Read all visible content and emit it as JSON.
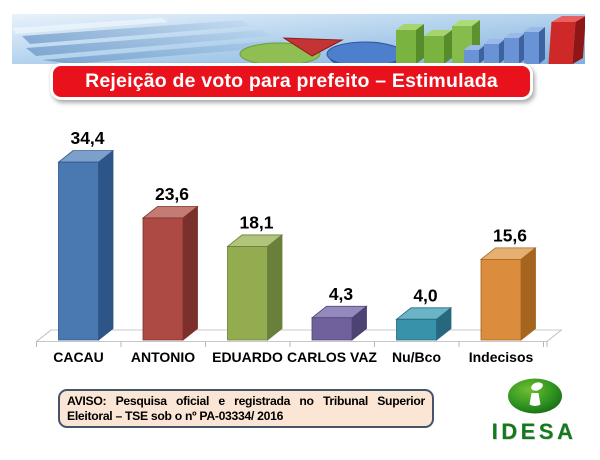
{
  "title": {
    "bg_color": "#E8111C"
  },
  "chart_data": {
    "type": "bar",
    "style": "3d-column",
    "title": "Rejeição de voto para prefeito – Estimulada",
    "categories": [
      "CACAU",
      "ANTONIO",
      "EDUARDO",
      "CARLOS VAZ",
      "Nu/Bco",
      "Indecisos"
    ],
    "values": [
      34.4,
      23.6,
      18.1,
      4.3,
      4.0,
      15.6
    ],
    "value_labels": [
      "34,4",
      "23,6",
      "18,1",
      "4,3",
      "4,0",
      "15,6"
    ],
    "xlabel": "",
    "ylabel": "",
    "ylim": [
      0,
      40
    ],
    "grid": false,
    "legend": false,
    "axis_visible": false,
    "bar_colors": [
      {
        "front": "#4A79B2",
        "top": "#7D9FCB",
        "side": "#2E5587"
      },
      {
        "front": "#AE4A44",
        "top": "#C47B74",
        "side": "#7C302C"
      },
      {
        "front": "#93AC50",
        "top": "#B0C47C",
        "side": "#68803A"
      },
      {
        "front": "#70619D",
        "top": "#9489BC",
        "side": "#4E4273"
      },
      {
        "front": "#3892AA",
        "top": "#6AB4C6",
        "side": "#26697E"
      },
      {
        "front": "#DB8D3D",
        "top": "#E6AF72",
        "side": "#A5651F"
      }
    ],
    "label_color": "#000000",
    "floor_line_color": "#B3B7BB"
  },
  "footer": {
    "aviso_line1": "AVISO: Pesquisa oficial e registrada no Tribunal Superior",
    "aviso_line1_words": [
      "AVISO:",
      "Pesquisa",
      "oficial",
      "e",
      "registrada",
      "no",
      "Tribunal",
      "Superior"
    ],
    "aviso_line2": "Eleitoral – TSE sob o nº PA-03334/ 2016",
    "aviso_bg": "#FBE5D5",
    "aviso_border": "#44546A",
    "logo_text": "IDESA",
    "logo_green": "#157A1D"
  }
}
